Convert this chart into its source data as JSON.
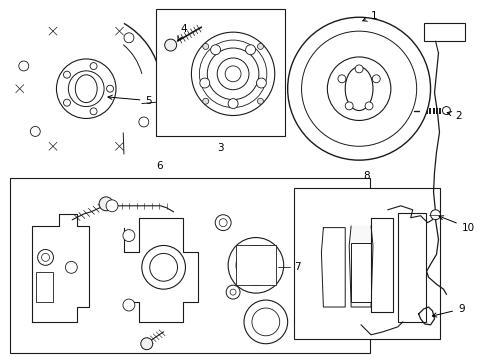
{
  "bg_color": "#ffffff",
  "line_color": "#1a1a1a",
  "fig_width": 4.89,
  "fig_height": 3.6,
  "dpi": 100,
  "arrow_style": {
    "arrowstyle": "->",
    "color": "black",
    "lw": 0.7
  },
  "label_fontsize": 7.5
}
